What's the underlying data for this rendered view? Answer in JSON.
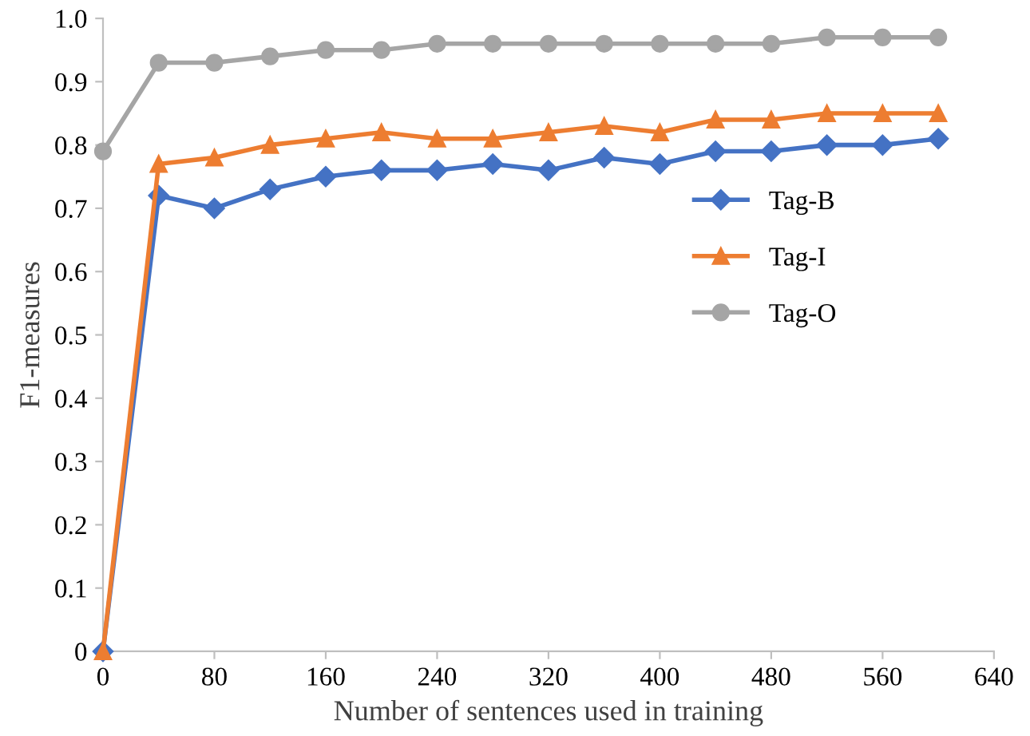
{
  "chart_data": {
    "type": "line",
    "xlabel": "Number of sentences used in training",
    "ylabel": "F1-measures",
    "x": [
      0,
      40,
      80,
      120,
      160,
      200,
      240,
      280,
      320,
      360,
      400,
      440,
      480,
      520,
      560,
      600
    ],
    "series": [
      {
        "name": "Tag-B",
        "color": "#4472c4",
        "marker": "diamond",
        "values": [
          0,
          0.72,
          0.7,
          0.73,
          0.75,
          0.76,
          0.76,
          0.77,
          0.76,
          0.78,
          0.77,
          0.79,
          0.79,
          0.8,
          0.8,
          0.81
        ]
      },
      {
        "name": "Tag-I",
        "color": "#ed7d31",
        "marker": "triangle",
        "values": [
          0,
          0.77,
          0.78,
          0.8,
          0.81,
          0.82,
          0.81,
          0.81,
          0.82,
          0.83,
          0.82,
          0.84,
          0.84,
          0.85,
          0.85,
          0.85
        ]
      },
      {
        "name": "Tag-O",
        "color": "#a5a5a5",
        "marker": "circle",
        "values": [
          0.79,
          0.93,
          0.93,
          0.94,
          0.95,
          0.95,
          0.96,
          0.96,
          0.96,
          0.96,
          0.96,
          0.96,
          0.96,
          0.97,
          0.97,
          0.97
        ]
      }
    ],
    "xlim": [
      0,
      640
    ],
    "xticks": [
      0,
      80,
      160,
      240,
      320,
      400,
      480,
      560,
      640
    ],
    "ylim": [
      0,
      1.0
    ],
    "yticks": [
      0,
      0.1,
      0.2,
      0.3,
      0.4,
      0.5,
      0.6,
      0.7,
      0.8,
      0.9,
      {
        "value": 1.0,
        "label": "1.0"
      }
    ],
    "grid": false,
    "legend": "right",
    "line_style": "solid"
  }
}
